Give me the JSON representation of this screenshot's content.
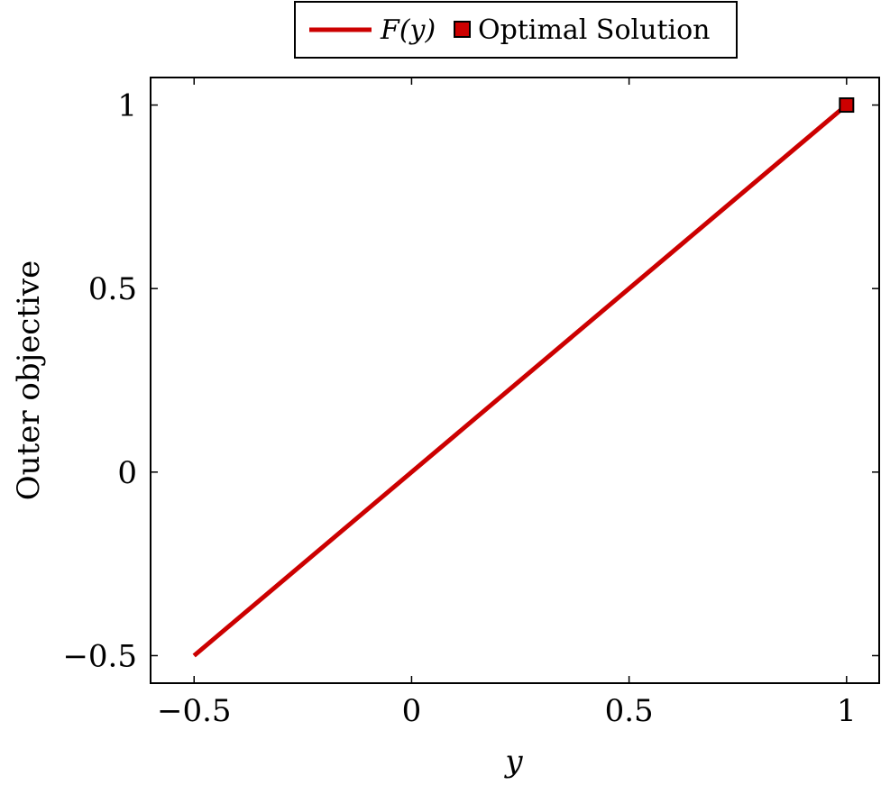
{
  "chart_data": {
    "type": "line",
    "xlabel": "y",
    "ylabel": "Outer objective",
    "xlim": [
      -0.6,
      1.075
    ],
    "ylim": [
      -0.575,
      1.075
    ],
    "x_ticks": [
      -0.5,
      0,
      0.5,
      1
    ],
    "y_ticks": [
      -0.5,
      0,
      0.5,
      1
    ],
    "x_tick_labels": [
      "−0.5",
      "0",
      "0.5",
      "1"
    ],
    "y_tick_labels": [
      "−0.5",
      "0",
      "0.5",
      "1"
    ],
    "grid": false,
    "legend_placement": "top-center-outside",
    "series": [
      {
        "name": "F(y)",
        "kind": "line",
        "color": "#cc0000",
        "x": [
          -0.5,
          1
        ],
        "y": [
          -0.5,
          1
        ]
      },
      {
        "name": "Optimal Solution",
        "kind": "marker",
        "marker": "square",
        "color": "#cc0000",
        "x": [
          1
        ],
        "y": [
          1
        ]
      }
    ]
  }
}
